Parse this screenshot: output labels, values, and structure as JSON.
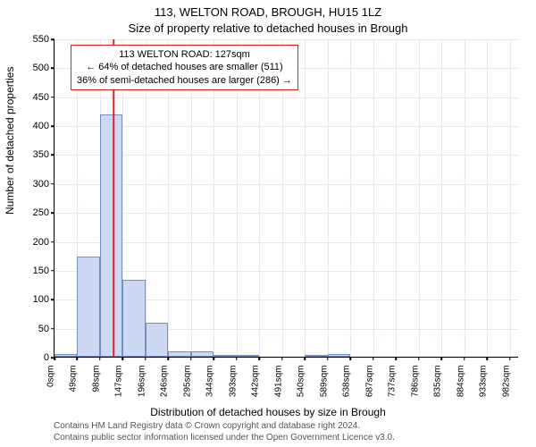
{
  "title_main": "113, WELTON ROAD, BROUGH, HU15 1LZ",
  "title_sub": "Size of property relative to detached houses in Brough",
  "ylabel": "Number of detached properties",
  "xlabel": "Distribution of detached houses by size in Brough",
  "footnote_line1": "Contains HM Land Registry data © Crown copyright and database right 2024.",
  "footnote_line2": "Contains public sector information licensed under the Open Government Licence v3.0.",
  "chart": {
    "type": "histogram",
    "background_color": "#ffffff",
    "grid_color": "#e8e8f2",
    "axis_color": "#000000",
    "bar_fill": "#cdd9f3",
    "bar_stroke": "#7a8fb8",
    "marker_color": "#d22",
    "anno_border": "#d22",
    "ylim": [
      0,
      550
    ],
    "ytick_step": 50,
    "xlim": [
      0,
      1000
    ],
    "xtick_labels": [
      "0sqm",
      "49sqm",
      "98sqm",
      "147sqm",
      "196sqm",
      "246sqm",
      "295sqm",
      "344sqm",
      "393sqm",
      "442sqm",
      "491sqm",
      "540sqm",
      "589sqm",
      "638sqm",
      "687sqm",
      "737sqm",
      "786sqm",
      "835sqm",
      "884sqm",
      "933sqm",
      "982sqm"
    ],
    "xtick_step": 49,
    "bar_width_sqm": 49,
    "bin_starts_sqm": [
      0,
      49,
      98,
      147,
      196,
      245,
      294,
      343,
      392,
      441,
      490,
      539,
      588,
      637,
      686,
      735,
      784,
      833,
      882,
      931
    ],
    "values": [
      5,
      173,
      418,
      133,
      58,
      10,
      10,
      2,
      1,
      0,
      0,
      1,
      5,
      0,
      0,
      0,
      0,
      0,
      0,
      0
    ],
    "marker_value_sqm": 127,
    "annotation": {
      "line1": "113 WELTON ROAD: 127sqm",
      "line2": "← 64% of detached houses are smaller (511)",
      "line3": "36% of semi-detached houses are larger (286) →"
    },
    "label_fontsize": 12,
    "tick_fontsize": 11,
    "title_fontsize": 13
  }
}
